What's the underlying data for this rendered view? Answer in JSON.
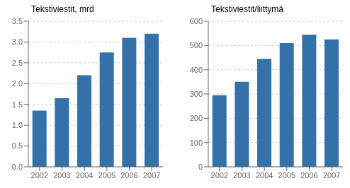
{
  "chart_data": [
    {
      "type": "bar",
      "title": "Tekstiviestit, mrd",
      "categories": [
        "2002",
        "2003",
        "2004",
        "2005",
        "2006",
        "2007"
      ],
      "values": [
        1.35,
        1.65,
        2.2,
        2.75,
        3.1,
        3.2
      ],
      "color": "#3371a8",
      "ylim": [
        0,
        3.5
      ],
      "yticks": [
        {
          "value": 0,
          "label": "0.0"
        },
        0.5,
        {
          "value": 1,
          "label": "1.0"
        },
        1.5,
        {
          "value": 2,
          "label": "2.0"
        },
        2.5,
        {
          "value": 3,
          "label": "3.0"
        },
        3.5
      ],
      "grid": true
    },
    {
      "type": "bar",
      "title": "Tekstiviestit/liittymä",
      "categories": [
        "2002",
        "2003",
        "2004",
        "2005",
        "2006",
        "2007"
      ],
      "values": [
        295,
        350,
        445,
        510,
        545,
        525
      ],
      "color": "#3371a8",
      "ylim": [
        0,
        600
      ],
      "yticks": [
        0,
        100,
        200,
        300,
        400,
        500,
        600
      ],
      "grid": true
    }
  ]
}
